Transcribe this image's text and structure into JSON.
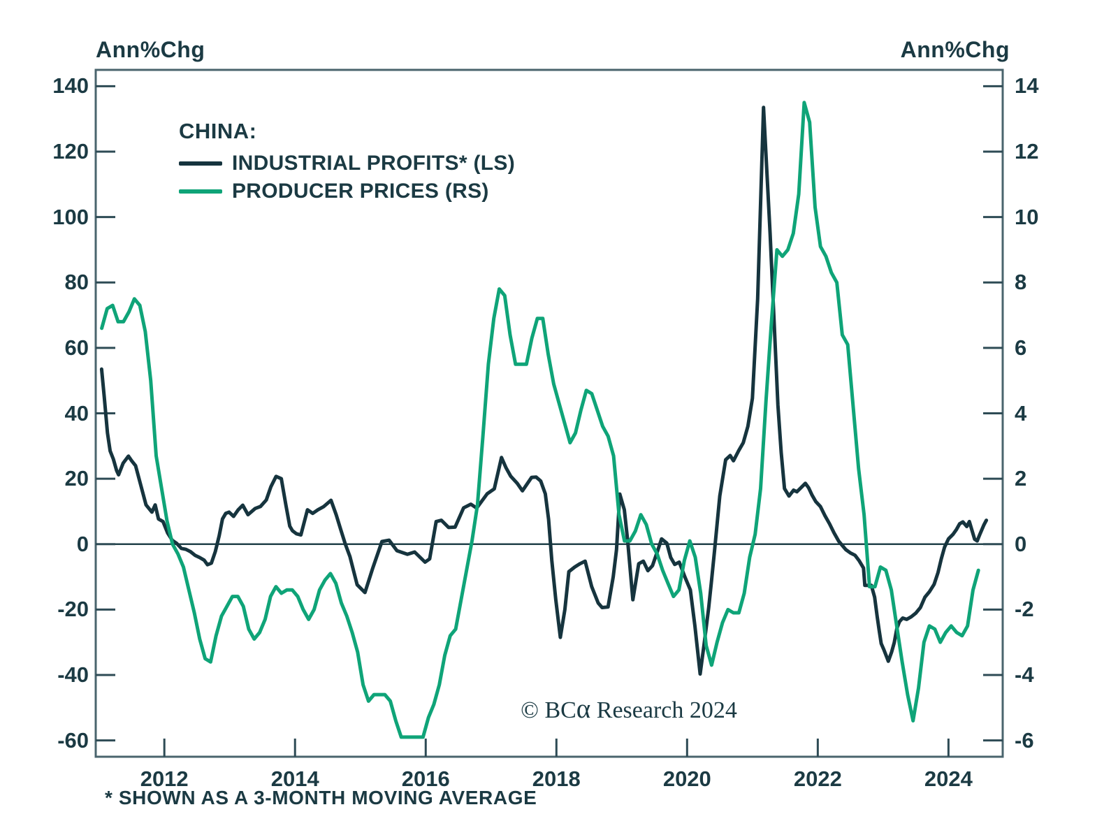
{
  "header": {
    "left_axis_title": "Ann%Chg",
    "right_axis_title": "Ann%Chg"
  },
  "legend": {
    "heading": "CHINA:",
    "series": [
      {
        "label": "INDUSTRIAL PROFITS* (LS)",
        "color": "#16343e"
      },
      {
        "label": "PRODUCER PRICES (RS)",
        "color": "#0fa478"
      }
    ]
  },
  "copyright": {
    "pre": "© BC",
    "alpha": "α",
    "post": " Research 2024"
  },
  "footnote": "* SHOWN AS A 3-MONTH MOVING AVERAGE",
  "colors": {
    "text": "#1b3a43",
    "border": "#4a646d",
    "tick": "#2e4b55",
    "zero_line": "#22424a",
    "profits_line": "#16343e",
    "ppi_line": "#0fa478"
  },
  "chart_data": {
    "type": "line",
    "title": "CHINA: INDUSTRIAL PROFITS (LS) vs PRODUCER PRICES (RS)",
    "left_axis": {
      "label": "Ann%Chg",
      "ticks": [
        140,
        120,
        100,
        80,
        60,
        40,
        20,
        0,
        -20,
        -40,
        -60
      ],
      "range": [
        -65,
        145
      ]
    },
    "right_axis": {
      "label": "Ann%Chg",
      "ticks": [
        14,
        12,
        10,
        8,
        6,
        4,
        2,
        0,
        -2,
        -4,
        -6
      ],
      "range": [
        -6.5,
        14.5
      ]
    },
    "x_axis": {
      "tick_years": [
        2012,
        2014,
        2016,
        2018,
        2020,
        2022,
        2024
      ],
      "range": [
        2010.95,
        2024.83
      ]
    },
    "grid": false,
    "legend_position": "top-left-inside",
    "zero_line": true,
    "series": [
      {
        "name": "INDUSTRIAL PROFITS* (LS)",
        "axis": "left",
        "color": "#16343e",
        "points": [
          [
            2011.04,
            53.5
          ],
          [
            2011.08,
            45
          ],
          [
            2011.13,
            34
          ],
          [
            2011.17,
            28.5
          ],
          [
            2011.22,
            26
          ],
          [
            2011.27,
            22.5
          ],
          [
            2011.3,
            21.2
          ],
          [
            2011.37,
            24.8
          ],
          [
            2011.45,
            26.9
          ],
          [
            2011.5,
            25.5
          ],
          [
            2011.56,
            24
          ],
          [
            2011.64,
            18
          ],
          [
            2011.72,
            12
          ],
          [
            2011.81,
            9.8
          ],
          [
            2011.86,
            12
          ],
          [
            2011.91,
            7.7
          ],
          [
            2011.98,
            6.9
          ],
          [
            2012.05,
            3.4
          ],
          [
            2012.12,
            1.2
          ],
          [
            2012.19,
            0.2
          ],
          [
            2012.26,
            -1.3
          ],
          [
            2012.33,
            -1.6
          ],
          [
            2012.4,
            -2.3
          ],
          [
            2012.47,
            -3.4
          ],
          [
            2012.54,
            -4.1
          ],
          [
            2012.61,
            -4.9
          ],
          [
            2012.66,
            -6.3
          ],
          [
            2012.72,
            -5.8
          ],
          [
            2012.78,
            -2.3
          ],
          [
            2012.84,
            2.6
          ],
          [
            2012.89,
            7.7
          ],
          [
            2012.94,
            9.4
          ],
          [
            2012.99,
            9.8
          ],
          [
            2013.06,
            8.5
          ],
          [
            2013.13,
            10.5
          ],
          [
            2013.2,
            11.9
          ],
          [
            2013.28,
            9
          ],
          [
            2013.39,
            10.9
          ],
          [
            2013.47,
            11.5
          ],
          [
            2013.56,
            13.5
          ],
          [
            2013.63,
            17.5
          ],
          [
            2013.71,
            20.7
          ],
          [
            2013.79,
            20
          ],
          [
            2013.86,
            12
          ],
          [
            2013.92,
            5.5
          ],
          [
            2013.96,
            4.1
          ],
          [
            2014.02,
            3.2
          ],
          [
            2014.09,
            2.8
          ],
          [
            2014.19,
            10.5
          ],
          [
            2014.27,
            9.4
          ],
          [
            2014.35,
            10.5
          ],
          [
            2014.44,
            11.5
          ],
          [
            2014.55,
            13.4
          ],
          [
            2014.63,
            9
          ],
          [
            2014.7,
            4.4
          ],
          [
            2014.77,
            0
          ],
          [
            2014.84,
            -3.8
          ],
          [
            2014.95,
            -12.4
          ],
          [
            2015.07,
            -14.8
          ],
          [
            2015.19,
            -7.3
          ],
          [
            2015.33,
            0.8
          ],
          [
            2015.44,
            1.2
          ],
          [
            2015.56,
            -2
          ],
          [
            2015.72,
            -3.1
          ],
          [
            2015.83,
            -2.4
          ],
          [
            2015.99,
            -5.5
          ],
          [
            2016.06,
            -4.5
          ],
          [
            2016.16,
            6.9
          ],
          [
            2016.24,
            7.3
          ],
          [
            2016.35,
            5.1
          ],
          [
            2016.45,
            5.2
          ],
          [
            2016.58,
            11.1
          ],
          [
            2016.69,
            12.2
          ],
          [
            2016.78,
            11
          ],
          [
            2016.94,
            15.4
          ],
          [
            2017.05,
            16.9
          ],
          [
            2017.16,
            26.5
          ],
          [
            2017.23,
            23.3
          ],
          [
            2017.3,
            20.8
          ],
          [
            2017.4,
            18.6
          ],
          [
            2017.48,
            16.3
          ],
          [
            2017.62,
            20.4
          ],
          [
            2017.69,
            20.5
          ],
          [
            2017.76,
            19.3
          ],
          [
            2017.83,
            15.4
          ],
          [
            2017.88,
            7.6
          ],
          [
            2017.93,
            -5
          ],
          [
            2017.99,
            -17
          ],
          [
            2018.06,
            -28.5
          ],
          [
            2018.13,
            -20
          ],
          [
            2018.19,
            -8.4
          ],
          [
            2018.28,
            -7
          ],
          [
            2018.36,
            -6
          ],
          [
            2018.44,
            -5.2
          ],
          [
            2018.54,
            -13
          ],
          [
            2018.64,
            -18
          ],
          [
            2018.7,
            -19.4
          ],
          [
            2018.79,
            -19.2
          ],
          [
            2018.87,
            -10
          ],
          [
            2018.92,
            -1.7
          ],
          [
            2018.97,
            15.3
          ],
          [
            2019.04,
            10.5
          ],
          [
            2019.09,
            1.2
          ],
          [
            2019.17,
            -17
          ],
          [
            2019.26,
            -6
          ],
          [
            2019.33,
            -5.2
          ],
          [
            2019.4,
            -8.1
          ],
          [
            2019.47,
            -6.6
          ],
          [
            2019.55,
            -2
          ],
          [
            2019.61,
            1.6
          ],
          [
            2019.69,
            0.3
          ],
          [
            2019.75,
            -4.1
          ],
          [
            2019.81,
            -6.2
          ],
          [
            2019.88,
            -5.5
          ],
          [
            2019.97,
            -10.2
          ],
          [
            2020.05,
            -14
          ],
          [
            2020.12,
            -25
          ],
          [
            2020.2,
            -39.7
          ],
          [
            2020.26,
            -30.7
          ],
          [
            2020.33,
            -19.5
          ],
          [
            2020.37,
            -12
          ],
          [
            2020.42,
            -2
          ],
          [
            2020.5,
            14.7
          ],
          [
            2020.59,
            25.8
          ],
          [
            2020.66,
            27.1
          ],
          [
            2020.71,
            25.5
          ],
          [
            2020.79,
            28.6
          ],
          [
            2020.86,
            31
          ],
          [
            2020.93,
            36
          ],
          [
            2021,
            44.6
          ],
          [
            2021.08,
            75
          ],
          [
            2021.17,
            133.5
          ],
          [
            2021.27,
            95
          ],
          [
            2021.39,
            42.5
          ],
          [
            2021.44,
            28
          ],
          [
            2021.49,
            17
          ],
          [
            2021.56,
            14.7
          ],
          [
            2021.63,
            16.5
          ],
          [
            2021.68,
            16
          ],
          [
            2021.81,
            18.6
          ],
          [
            2021.86,
            17.2
          ],
          [
            2021.91,
            15.1
          ],
          [
            2021.97,
            13
          ],
          [
            2022.04,
            11.5
          ],
          [
            2022.11,
            8.7
          ],
          [
            2022.18,
            6.2
          ],
          [
            2022.25,
            3.4
          ],
          [
            2022.32,
            0.9
          ],
          [
            2022.43,
            -1.7
          ],
          [
            2022.5,
            -2.7
          ],
          [
            2022.57,
            -3.4
          ],
          [
            2022.63,
            -5
          ],
          [
            2022.7,
            -7.3
          ],
          [
            2022.72,
            -12.6
          ],
          [
            2022.82,
            -12.6
          ],
          [
            2022.87,
            -16.2
          ],
          [
            2022.91,
            -22.2
          ],
          [
            2022.94,
            -26.5
          ],
          [
            2022.97,
            -30.4
          ],
          [
            2023.01,
            -32.2
          ],
          [
            2023.06,
            -34.8
          ],
          [
            2023.08,
            -35.8
          ],
          [
            2023.13,
            -33
          ],
          [
            2023.17,
            -30.1
          ],
          [
            2023.21,
            -25.8
          ],
          [
            2023.25,
            -23.7
          ],
          [
            2023.3,
            -22.6
          ],
          [
            2023.36,
            -23
          ],
          [
            2023.43,
            -22.2
          ],
          [
            2023.5,
            -21.1
          ],
          [
            2023.57,
            -19.4
          ],
          [
            2023.64,
            -16.2
          ],
          [
            2023.71,
            -14.5
          ],
          [
            2023.78,
            -12.3
          ],
          [
            2023.84,
            -8.7
          ],
          [
            2023.89,
            -4.5
          ],
          [
            2023.94,
            -0.9
          ],
          [
            2024,
            1.6
          ],
          [
            2024.07,
            3
          ],
          [
            2024.12,
            4.4
          ],
          [
            2024.17,
            6.2
          ],
          [
            2024.22,
            6.8
          ],
          [
            2024.28,
            5.4
          ],
          [
            2024.32,
            6.9
          ],
          [
            2024.4,
            1.5
          ],
          [
            2024.44,
            1
          ],
          [
            2024.48,
            3
          ],
          [
            2024.54,
            5.8
          ],
          [
            2024.58,
            7.3
          ]
        ]
      },
      {
        "name": "PRODUCER PRICES (RS)",
        "axis": "right",
        "color": "#0fa478",
        "start_year": 2011,
        "monthly_values": [
          6.6,
          7.2,
          7.3,
          6.8,
          6.8,
          7.1,
          7.5,
          7.3,
          6.5,
          5.0,
          2.7,
          1.7,
          0.7,
          0.0,
          -0.3,
          -0.7,
          -1.4,
          -2.1,
          -2.9,
          -3.5,
          -3.6,
          -2.8,
          -2.2,
          -1.9,
          -1.6,
          -1.6,
          -1.9,
          -2.6,
          -2.9,
          -2.7,
          -2.3,
          -1.6,
          -1.3,
          -1.5,
          -1.4,
          -1.4,
          -1.6,
          -2.0,
          -2.3,
          -2.0,
          -1.4,
          -1.1,
          -0.9,
          -1.2,
          -1.8,
          -2.2,
          -2.7,
          -3.3,
          -4.3,
          -4.8,
          -4.6,
          -4.6,
          -4.6,
          -4.8,
          -5.4,
          -5.9,
          -5.9,
          -5.9,
          -5.9,
          -5.9,
          -5.3,
          -4.9,
          -4.3,
          -3.4,
          -2.8,
          -2.6,
          -1.7,
          -0.8,
          0.1,
          1.2,
          3.3,
          5.5,
          6.9,
          7.8,
          7.6,
          6.4,
          5.5,
          5.5,
          5.5,
          6.3,
          6.9,
          6.9,
          5.8,
          4.9,
          4.3,
          3.7,
          3.1,
          3.4,
          4.1,
          4.7,
          4.6,
          4.1,
          3.6,
          3.3,
          2.7,
          0.9,
          0.1,
          0.1,
          0.4,
          0.9,
          0.6,
          0.0,
          -0.3,
          -0.8,
          -1.2,
          -1.6,
          -1.4,
          -0.5,
          0.1,
          -0.4,
          -1.5,
          -3.1,
          -3.7,
          -3.0,
          -2.4,
          -2.0,
          -2.1,
          -2.1,
          -1.5,
          -0.4,
          0.3,
          1.7,
          4.4,
          6.8,
          9.0,
          8.8,
          9.0,
          9.5,
          10.7,
          13.5,
          12.9,
          10.3,
          9.1,
          8.8,
          8.3,
          8.0,
          6.4,
          6.1,
          4.2,
          2.3,
          0.9,
          -1.3,
          -1.3,
          -0.7,
          -0.8,
          -1.4,
          -2.5,
          -3.6,
          -4.6,
          -5.4,
          -4.4,
          -3.0,
          -2.5,
          -2.6,
          -3.0,
          -2.7,
          -2.5,
          -2.7,
          -2.8,
          -2.5,
          -1.4,
          -0.8
        ]
      }
    ]
  }
}
